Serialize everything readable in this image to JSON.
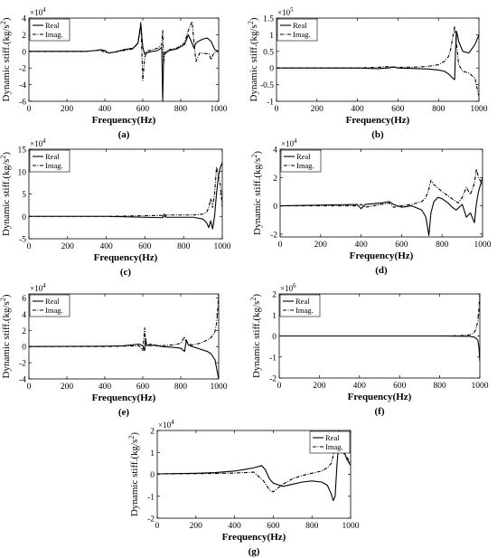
{
  "figure": {
    "panels": [
      "a",
      "b",
      "c",
      "d",
      "e",
      "f",
      "g"
    ]
  },
  "chart_data": [
    {
      "id": "a",
      "type": "line",
      "caption": "(a)",
      "xlabel": "Frequency(Hz)",
      "ylabel": "Dynamic stiff.(kg/s^2)",
      "exponent": "4",
      "xlim": [
        0,
        1000
      ],
      "ylim": [
        -6,
        4
      ],
      "xticks": [
        "0",
        "200",
        "400",
        "600",
        "800",
        "1000"
      ],
      "yticks": [
        "-6",
        "-4",
        "-2",
        "0",
        "2",
        "4"
      ],
      "grid": false,
      "legend_position": "top-left",
      "series": [
        {
          "name": "Real",
          "style": "solid",
          "x": [
            0,
            300,
            350,
            380,
            400,
            420,
            450,
            500,
            550,
            575,
            590,
            600,
            610,
            620,
            650,
            680,
            700,
            705,
            710,
            720,
            740,
            780,
            820,
            840,
            850,
            870,
            880,
            900,
            920,
            940,
            960,
            980,
            1000
          ],
          "y": [
            0,
            0,
            0.1,
            0.2,
            0.1,
            -0.2,
            -0.1,
            0.2,
            0.4,
            1.0,
            3.2,
            0.5,
            -0.3,
            -0.2,
            0,
            0.1,
            0.5,
            -6.0,
            -0.5,
            -0.2,
            0.1,
            0.3,
            0.8,
            2.0,
            1.5,
            0.4,
            1.0,
            1.3,
            1.5,
            1.6,
            1.2,
            0.2,
            0
          ]
        },
        {
          "name": "Imag.",
          "style": "dashdot",
          "x": [
            0,
            300,
            350,
            380,
            400,
            420,
            500,
            550,
            575,
            590,
            600,
            610,
            620,
            650,
            680,
            700,
            705,
            710,
            715,
            720,
            740,
            780,
            820,
            840,
            860,
            870,
            880,
            900,
            950,
            960,
            970,
            980,
            1000
          ],
          "y": [
            0,
            0,
            0.1,
            0.1,
            -0.1,
            -0.2,
            0.1,
            0.3,
            1.0,
            3.6,
            -3.5,
            -0.8,
            0,
            0.2,
            0.4,
            0.8,
            2.5,
            -1.5,
            -0.2,
            0,
            0.2,
            0.4,
            1.0,
            2.5,
            3.6,
            1.0,
            -1.2,
            -0.2,
            -0.3,
            -1.0,
            -0.4,
            -0.1,
            0
          ]
        }
      ]
    },
    {
      "id": "b",
      "type": "line",
      "caption": "(b)",
      "xlabel": "Frequency(Hz)",
      "ylabel": "Dynamic stiff.(kg/s^2)",
      "exponent": "5",
      "xlim": [
        0,
        1000
      ],
      "ylim": [
        -1,
        1.5
      ],
      "xticks": [
        "0",
        "200",
        "400",
        "600",
        "800",
        "1000"
      ],
      "yticks": [
        "-1",
        "-0.5",
        "0",
        "0.5",
        "1",
        "1.5"
      ],
      "grid": false,
      "legend_position": "top-left",
      "series": [
        {
          "name": "Real",
          "style": "solid",
          "x": [
            0,
            400,
            500,
            550,
            580,
            600,
            700,
            750,
            800,
            830,
            850,
            870,
            880,
            885,
            890,
            900,
            920,
            950,
            980,
            1000
          ],
          "y": [
            0,
            0,
            -0.02,
            0,
            0.03,
            0,
            -0.02,
            -0.03,
            -0.06,
            -0.1,
            -0.18,
            -0.3,
            -0.35,
            0.6,
            1.1,
            0.8,
            0.5,
            0.45,
            0.7,
            1.0
          ]
        },
        {
          "name": "Imag.",
          "style": "dashdot",
          "x": [
            0,
            400,
            500,
            550,
            600,
            700,
            750,
            800,
            830,
            850,
            860,
            870,
            880,
            890,
            900,
            920,
            950,
            980,
            1000
          ],
          "y": [
            0,
            0,
            0.02,
            0.04,
            0.02,
            0.03,
            0.05,
            0.1,
            0.2,
            0.35,
            0.55,
            0.9,
            1.25,
            0.7,
            0.1,
            -0.1,
            -0.15,
            -0.3,
            -0.85
          ]
        }
      ]
    },
    {
      "id": "c",
      "type": "line",
      "caption": "(c)",
      "xlabel": "Frequency(Hz)",
      "ylabel": "Dynamic stiff.(kg/s^2)",
      "exponent": "4",
      "xlim": [
        0,
        1000
      ],
      "ylim": [
        -5,
        15
      ],
      "xticks": [
        "0",
        "200",
        "400",
        "600",
        "800",
        "1000"
      ],
      "yticks": [
        "-5",
        "0",
        "5",
        "10",
        "15"
      ],
      "grid": false,
      "legend_position": "top-left",
      "series": [
        {
          "name": "Real",
          "style": "solid",
          "x": [
            0,
            400,
            690,
            700,
            710,
            850,
            900,
            920,
            930,
            940,
            950,
            960,
            970,
            980,
            990,
            1000
          ],
          "y": [
            0,
            0,
            -0.3,
            0.5,
            -0.2,
            -0.2,
            -0.6,
            -1.5,
            -2.5,
            -1.0,
            -2.8,
            0,
            5.0,
            9.0,
            11.0,
            12.0
          ]
        },
        {
          "name": "Imag.",
          "style": "dashdot",
          "x": [
            0,
            400,
            690,
            700,
            710,
            850,
            900,
            920,
            930,
            940,
            950,
            960,
            970,
            980,
            990,
            1000
          ],
          "y": [
            0,
            0,
            0.2,
            -0.3,
            0.3,
            0.3,
            0.5,
            1.0,
            2.0,
            4.0,
            2.0,
            5.0,
            11.0,
            9.0,
            7.0,
            2.0
          ]
        }
      ]
    },
    {
      "id": "d",
      "type": "line",
      "caption": "(d)",
      "xlabel": "Frequency(Hz)",
      "ylabel": "Dynamic stiff.(kg/s^2)",
      "exponent": "4",
      "xlim": [
        0,
        1000
      ],
      "ylim": [
        -2.2,
        4
      ],
      "xticks": [
        "0",
        "200",
        "400",
        "600",
        "800",
        "1000"
      ],
      "yticks": [
        "-2",
        "0",
        "2",
        "4"
      ],
      "grid": false,
      "legend_position": "top-left",
      "series": [
        {
          "name": "Real",
          "style": "solid",
          "x": [
            0,
            380,
            400,
            420,
            500,
            540,
            560,
            600,
            650,
            700,
            720,
            735,
            745,
            760,
            780,
            800,
            830,
            850,
            870,
            900,
            920,
            940,
            960,
            970,
            980,
            1000
          ],
          "y": [
            0,
            0.1,
            -0.2,
            0.1,
            0.2,
            0.3,
            0.1,
            -0.1,
            0,
            -0.3,
            -0.8,
            -2.1,
            -0.5,
            0.3,
            0.6,
            0.5,
            0.2,
            -0.1,
            -0.3,
            0.1,
            -0.8,
            -0.5,
            -1.2,
            0.2,
            1.0,
            2.0
          ]
        },
        {
          "name": "Imag.",
          "style": "dashdot",
          "x": [
            0,
            380,
            400,
            420,
            500,
            540,
            560,
            600,
            650,
            700,
            720,
            735,
            745,
            760,
            800,
            850,
            880,
            900,
            920,
            940,
            960,
            970,
            980,
            1000
          ],
          "y": [
            0,
            0,
            0.1,
            -0.1,
            0.1,
            0.2,
            -0.1,
            0,
            0.1,
            0.3,
            0.6,
            1.2,
            1.8,
            1.5,
            1.0,
            0.5,
            0.2,
            0.6,
            1.3,
            0.8,
            1.6,
            2.6,
            2.0,
            1.5
          ]
        }
      ]
    },
    {
      "id": "e",
      "type": "line",
      "caption": "(e)",
      "xlabel": "Frequency(Hz)",
      "ylabel": "Dynamic stiff.(kg/s^2)",
      "exponent": "4",
      "xlim": [
        0,
        1000
      ],
      "ylim": [
        -4,
        6.5
      ],
      "xticks": [
        "0",
        "200",
        "400",
        "600",
        "800",
        "1000"
      ],
      "yticks": [
        "-4",
        "-2",
        "0",
        "2",
        "4",
        "6"
      ],
      "grid": false,
      "legend_position": "top-left",
      "series": [
        {
          "name": "Real",
          "style": "solid",
          "x": [
            0,
            400,
            500,
            580,
            600,
            610,
            615,
            620,
            640,
            660,
            700,
            760,
            800,
            820,
            830,
            840,
            860,
            900,
            940,
            960,
            980,
            1000
          ],
          "y": [
            0,
            0.05,
            0.1,
            0.3,
            0.1,
            -0.5,
            1.0,
            0.2,
            0.1,
            0.2,
            0,
            -0.1,
            -0.2,
            -0.6,
            0.8,
            0.2,
            0,
            -0.3,
            -0.6,
            -0.9,
            -1.6,
            -4.0
          ]
        },
        {
          "name": "Imag.",
          "style": "dashdot",
          "x": [
            0,
            400,
            500,
            580,
            600,
            610,
            615,
            620,
            640,
            660,
            700,
            760,
            800,
            820,
            830,
            840,
            860,
            900,
            940,
            960,
            980,
            990,
            1000
          ],
          "y": [
            0,
            0,
            0.05,
            0.1,
            -0.5,
            2.3,
            0.2,
            0.1,
            0.3,
            0.1,
            0.1,
            0.2,
            0.4,
            1.2,
            0.5,
            0.3,
            0.2,
            0.4,
            0.8,
            1.1,
            1.8,
            3.0,
            6.5
          ]
        }
      ]
    },
    {
      "id": "f",
      "type": "line",
      "caption": "(f)",
      "xlabel": "Frequency(Hz)",
      "ylabel": "Dynamic stiff.(kg/s^2)",
      "exponent": "6",
      "xlim": [
        0,
        1000
      ],
      "ylim": [
        -2,
        2
      ],
      "xticks": [
        "0",
        "200",
        "400",
        "600",
        "800",
        "1000"
      ],
      "yticks": [
        "-2",
        "-1",
        "0",
        "1",
        "2"
      ],
      "grid": false,
      "legend_position": "top-left",
      "series": [
        {
          "name": "Real",
          "style": "solid",
          "x": [
            0,
            800,
            900,
            950,
            970,
            980,
            990,
            995,
            1000
          ],
          "y": [
            0,
            0,
            -0.01,
            -0.02,
            -0.05,
            -0.1,
            -0.2,
            -0.5,
            -1.2
          ]
        },
        {
          "name": "Imag.",
          "style": "dashdot",
          "x": [
            0,
            800,
            900,
            950,
            970,
            980,
            990,
            995,
            1000
          ],
          "y": [
            0,
            0,
            0.01,
            0.05,
            0.15,
            0.3,
            0.7,
            1.2,
            2.0
          ]
        }
      ]
    },
    {
      "id": "g",
      "type": "line",
      "caption": "(g)",
      "xlabel": "Frequency(Hz)",
      "ylabel": "Dynamic stiff.(kg/s^2)",
      "exponent": "4",
      "xlim": [
        0,
        1000
      ],
      "ylim": [
        -2,
        2
      ],
      "xticks": [
        "0",
        "200",
        "400",
        "600",
        "800",
        "1000"
      ],
      "yticks": [
        "-2",
        "-1",
        "0",
        "1",
        "2"
      ],
      "grid": false,
      "legend_position": "top-right",
      "series": [
        {
          "name": "Real",
          "style": "solid",
          "x": [
            0,
            200,
            300,
            400,
            450,
            500,
            540,
            560,
            580,
            600,
            650,
            700,
            750,
            800,
            850,
            880,
            900,
            910,
            920,
            930,
            940,
            960,
            980,
            1000
          ],
          "y": [
            0.02,
            0.05,
            0.08,
            0.15,
            0.22,
            0.3,
            0.4,
            0.2,
            -0.2,
            -0.4,
            -0.55,
            -0.45,
            -0.35,
            -0.3,
            -0.35,
            -0.5,
            -0.9,
            -1.2,
            -1.0,
            0.5,
            1.5,
            1.2,
            0.7,
            0.4
          ]
        },
        {
          "name": "Imag.",
          "style": "dashdot",
          "x": [
            0,
            200,
            300,
            400,
            500,
            550,
            580,
            600,
            620,
            650,
            700,
            750,
            800,
            850,
            880,
            900,
            920,
            930,
            940,
            950,
            960,
            980,
            1000
          ],
          "y": [
            0.02,
            0.03,
            0.04,
            0.06,
            0.1,
            -0.3,
            -0.7,
            -0.8,
            -0.65,
            -0.45,
            -0.2,
            -0.05,
            0.05,
            0.15,
            0.3,
            0.5,
            1.2,
            1.6,
            2.0,
            1.4,
            1.0,
            0.8,
            0.5
          ]
        }
      ]
    }
  ]
}
